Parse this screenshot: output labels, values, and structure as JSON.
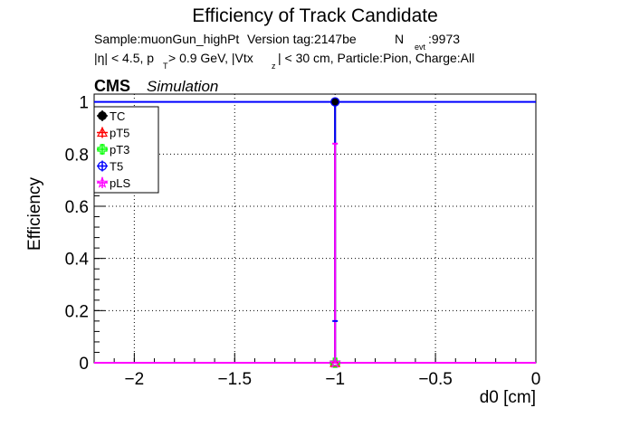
{
  "chart_data": {
    "type": "scatter",
    "title": "Efficiency of Track Candidate",
    "subtitle_line1": {
      "sample": "Sample:muonGun_highPt",
      "version": "Version tag:2147be",
      "nevt_label": "N",
      "nevt_sub": "evt",
      "nevt_value": ":9973"
    },
    "subtitle_line2": {
      "a": "|η| < 4.5, p",
      "a_sub": "T",
      "b": " > 0.9 GeV, |Vtx",
      "b_sub": "z",
      "c": "| < 30 cm, Particle:Pion, Charge:All"
    },
    "cms_label": "CMS",
    "simulation_label": "Simulation",
    "xlabel": "d0 [cm]",
    "ylabel": "Efficiency",
    "xlim": [
      -2.2,
      0
    ],
    "ylim": [
      0,
      1.03
    ],
    "xticks": [
      -2,
      -1.5,
      -1,
      -0.5,
      0
    ],
    "xtick_labels": [
      "−2",
      "−1.5",
      "−1",
      "−0.5",
      "0"
    ],
    "yticks": [
      0,
      0.2,
      0.4,
      0.6,
      0.8,
      1
    ],
    "ytick_labels": [
      "0",
      "0.2",
      "0.4",
      "0.6",
      "0.8",
      "1"
    ],
    "grid": true,
    "legend_position": "top-left",
    "series": [
      {
        "name": "TC",
        "color": "#000000",
        "marker": "filled-circle",
        "points": [
          {
            "x": -1,
            "y": 1.0,
            "ylo": 0.0,
            "yhi": 1.0
          }
        ]
      },
      {
        "name": "pT5",
        "color": "#ff0000",
        "marker": "open-triangle",
        "points": [
          {
            "x": -1,
            "y": 0.0
          }
        ]
      },
      {
        "name": "pT3",
        "color": "#00ff00",
        "marker": "open-cross",
        "points": [
          {
            "x": -1,
            "y": 0.0
          }
        ]
      },
      {
        "name": "T5",
        "color": "#0000ff",
        "marker": "open-circle",
        "points": [
          {
            "x": -1,
            "y": 1.0,
            "ylo": 0.0,
            "yhi": 1.0
          }
        ],
        "hline": {
          "y": 1.0,
          "x_from": -2.2,
          "x_to": 0
        }
      },
      {
        "name": "pLS",
        "color": "#ff00ff",
        "marker": "open-star",
        "points": [
          {
            "x": -1,
            "y": 0.0,
            "ylo": 0.0,
            "yhi": 0.84
          }
        ],
        "hline": {
          "y": 0.0,
          "x_from": -2.2,
          "x_to": 0
        }
      }
    ]
  }
}
